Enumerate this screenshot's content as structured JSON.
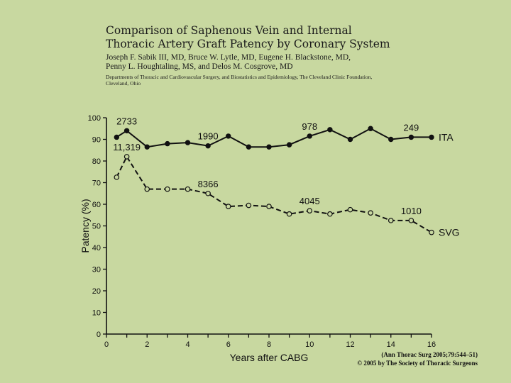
{
  "header": {
    "title_line1": "Comparison of Saphenous Vein and Internal",
    "title_line2": "Thoracic Artery Graft Patency by Coronary System",
    "authors_line1": "Joseph F. Sabik III, MD, Bruce W. Lytle, MD, Eugene H. Blackstone, MD,",
    "authors_line2": "Penny L. Houghtaling, MS, and Delos M. Cosgrove, MD",
    "affiliation": "Departments of Thoracic and Cardiovascular Surgery, and Biostatistics and Epidemiology, The Cleveland Clinic Foundation, Cleveland, Ohio"
  },
  "citation": {
    "line1": "(Ann Thorac Surg 2005;79:544–51)",
    "line2": "© 2005 by The Society of Thoracic Surgeons"
  },
  "chart_data": {
    "type": "line",
    "xlabel": "Years after CABG",
    "ylabel": "Patency (%)",
    "xlim": [
      0,
      16
    ],
    "ylim": [
      0,
      100
    ],
    "xticks": [
      0,
      2,
      4,
      6,
      8,
      10,
      12,
      14,
      16
    ],
    "yticks": [
      0,
      10,
      20,
      30,
      40,
      50,
      60,
      70,
      80,
      90,
      100
    ],
    "grid": false,
    "series": [
      {
        "name": "ITA",
        "style": "solid",
        "marker": "filled-circle",
        "x": [
          0.5,
          1,
          2,
          3,
          4,
          5,
          6,
          7,
          8,
          9,
          10,
          11,
          12,
          13,
          14,
          15,
          16
        ],
        "y": [
          91,
          94,
          86.5,
          88,
          88.5,
          87,
          91.5,
          86.5,
          86.5,
          87.5,
          91.5,
          94.5,
          90,
          95,
          90,
          91,
          91
        ]
      },
      {
        "name": "SVG",
        "style": "dashed",
        "marker": "open-circle",
        "x": [
          0.5,
          1,
          2,
          3,
          4,
          5,
          6,
          7,
          8,
          9,
          10,
          11,
          12,
          13,
          14,
          15,
          16
        ],
        "y": [
          72.5,
          82,
          67,
          67,
          67,
          65,
          59,
          59.5,
          59,
          55.5,
          57,
          55.5,
          57.5,
          56,
          52.5,
          52.5,
          47
        ]
      }
    ],
    "annotations": [
      {
        "text": "2733",
        "series": "ITA",
        "x": 1
      },
      {
        "text": "1990",
        "series": "ITA",
        "x": 5
      },
      {
        "text": "978",
        "series": "ITA",
        "x": 10
      },
      {
        "text": "249",
        "series": "ITA",
        "x": 15
      },
      {
        "text": "11,319",
        "series": "SVG",
        "x": 1
      },
      {
        "text": "8366",
        "series": "SVG",
        "x": 5
      },
      {
        "text": "4045",
        "series": "SVG",
        "x": 10
      },
      {
        "text": "1010",
        "series": "SVG",
        "x": 15
      }
    ]
  }
}
